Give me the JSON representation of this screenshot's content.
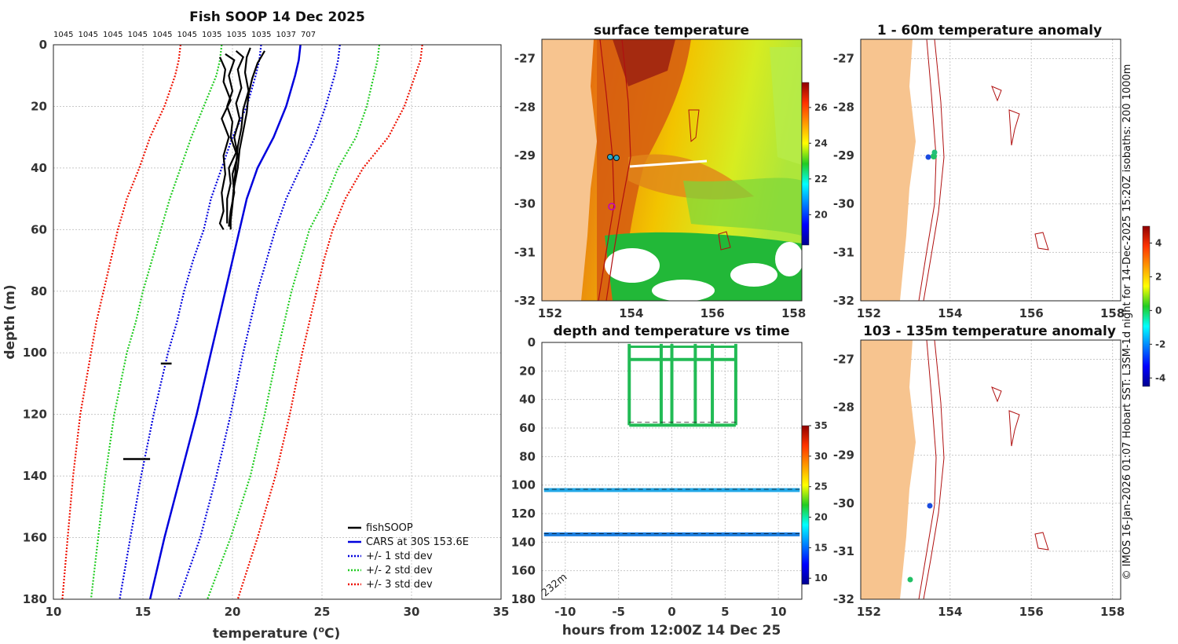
{
  "chart_data": [
    {
      "type": "line",
      "panel": "profile",
      "title": "Fish SOOP 14 Dec 2025",
      "top_labels": [
        "1045",
        "1045",
        "1045",
        "1045",
        "1045",
        "1045",
        "1035",
        "1035",
        "1035",
        "1037",
        "707"
      ],
      "xlabel": "temperature (°C)",
      "xlabel_main": "temperature (",
      "xlabel_sup": "o",
      "xlabel_end": "C)",
      "ylabel": "depth (m)",
      "xlim": [
        10,
        35
      ],
      "ylim": [
        180,
        0
      ],
      "xticks": [
        "10",
        "15",
        "20",
        "25",
        "30",
        "35"
      ],
      "yticks": [
        "0",
        "20",
        "40",
        "60",
        "80",
        "100",
        "120",
        "140",
        "160",
        "180"
      ],
      "legend": [
        "fishSOOP",
        "CARS at 30S 153.6E",
        "+/- 1 std dev",
        "+/- 2 std dev",
        "+/- 3 std dev"
      ],
      "depth": [
        0,
        5,
        10,
        20,
        30,
        40,
        50,
        60,
        70,
        80,
        90,
        100,
        120,
        140,
        160,
        180
      ],
      "series": [
        {
          "name": "CARS at 30S 153.6E",
          "color": "#0000dd",
          "style": "solid",
          "values": [
            23.8,
            23.7,
            23.5,
            23.0,
            22.3,
            21.4,
            20.8,
            20.4,
            20.0,
            19.6,
            19.2,
            18.8,
            18.0,
            17.1,
            16.2,
            15.4
          ]
        },
        {
          "name": "-1 std dev",
          "color": "#0000dd",
          "style": "dotted",
          "values": [
            21.6,
            21.5,
            21.3,
            20.8,
            20.0,
            19.4,
            18.8,
            18.4,
            17.8,
            17.3,
            16.9,
            16.4,
            15.6,
            14.9,
            14.3,
            13.7
          ]
        },
        {
          "name": "+1 std dev",
          "color": "#0000dd",
          "style": "dotted",
          "values": [
            26.0,
            25.9,
            25.7,
            25.2,
            24.6,
            23.8,
            23.0,
            22.4,
            21.9,
            21.4,
            21.0,
            20.6,
            19.9,
            19.1,
            18.2,
            17.0
          ]
        },
        {
          "name": "-2 std dev",
          "color": "#22cc22",
          "style": "dotted",
          "values": [
            19.4,
            19.3,
            19.1,
            18.4,
            17.7,
            17.1,
            16.5,
            16.0,
            15.5,
            15.0,
            14.6,
            14.1,
            13.4,
            12.9,
            12.5,
            12.1
          ]
        },
        {
          "name": "+2 std dev",
          "color": "#22cc22",
          "style": "dotted",
          "values": [
            28.2,
            28.1,
            27.9,
            27.5,
            26.9,
            25.9,
            25.2,
            24.3,
            23.8,
            23.3,
            22.9,
            22.5,
            21.8,
            21.0,
            19.9,
            18.6
          ]
        },
        {
          "name": "-3 std dev",
          "color": "#ee1100",
          "style": "dotted",
          "values": [
            17.1,
            17.0,
            16.8,
            16.2,
            15.4,
            14.8,
            14.1,
            13.6,
            13.2,
            12.8,
            12.4,
            12.1,
            11.5,
            11.1,
            10.8,
            10.5
          ]
        },
        {
          "name": "+3 std dev",
          "color": "#ee1100",
          "style": "dotted",
          "values": [
            30.6,
            30.5,
            30.2,
            29.6,
            28.7,
            27.3,
            26.3,
            25.6,
            25.1,
            24.7,
            24.3,
            23.9,
            23.2,
            22.4,
            21.4,
            20.3
          ]
        }
      ],
      "fishsoop": [
        {
          "t": [
            19.6,
            20.1,
            19.8,
            20.0,
            19.7,
            20.0,
            19.9,
            20.2,
            19.8,
            19.9,
            19.7,
            19.7
          ],
          "d": [
            3,
            5,
            10,
            15,
            20,
            25,
            30,
            35,
            40,
            45,
            50,
            58
          ]
        },
        {
          "t": [
            20.2,
            20.6,
            20.3,
            20.5,
            20.2,
            20.4,
            20.1,
            20.3,
            20.0,
            20.1,
            19.9,
            19.8
          ],
          "d": [
            2,
            4,
            8,
            14,
            19,
            24,
            30,
            36,
            42,
            48,
            54,
            59
          ]
        },
        {
          "t": [
            21.0,
            20.8,
            20.7,
            20.9,
            20.6,
            20.5,
            20.3,
            20.2,
            20.1,
            20.0,
            19.9,
            19.9
          ],
          "d": [
            1,
            4,
            9,
            15,
            21,
            27,
            33,
            39,
            45,
            51,
            56,
            60
          ]
        },
        {
          "t": [
            21.8,
            21.4,
            21.1,
            20.9,
            20.8,
            20.6,
            20.4,
            20.3,
            20.1,
            20.0,
            19.9,
            19.8
          ],
          "d": [
            2,
            6,
            11,
            16,
            22,
            28,
            34,
            40,
            46,
            52,
            57,
            59
          ]
        },
        {
          "t": [
            19.3,
            19.6,
            19.5,
            19.9,
            19.4,
            19.8,
            19.5,
            19.6,
            19.4,
            19.5,
            19.3,
            19.5
          ],
          "d": [
            4,
            8,
            12,
            18,
            24,
            30,
            36,
            42,
            48,
            54,
            58,
            60
          ]
        }
      ],
      "fishsoop_segments": [
        {
          "t": [
            16.0,
            16.6
          ],
          "d": [
            103.5,
            103.5
          ]
        },
        {
          "t": [
            13.9,
            15.4
          ],
          "d": [
            134.5,
            134.5
          ]
        }
      ]
    },
    {
      "type": "heatmap",
      "panel": "surface",
      "title": "surface temperature",
      "xticks": [
        "152",
        "154",
        "156",
        "158"
      ],
      "yticks": [
        "-27",
        "-28",
        "-29",
        "-30",
        "-31",
        "-32"
      ],
      "xlim": [
        151.8,
        158.2
      ],
      "ylim": [
        -32,
        -26.6
      ],
      "colorbar_ticks": [
        "20",
        "22",
        "24",
        "26"
      ],
      "colorbar_range": [
        18.3,
        27.4
      ]
    },
    {
      "type": "scatter",
      "panel": "time",
      "title": "depth and temperature vs time",
      "xlabel": "hours from 12:00Z 14 Dec 25",
      "xticks": [
        "-10",
        "-5",
        "0",
        "5",
        "10"
      ],
      "yticks": [
        "0",
        "20",
        "40",
        "60",
        "80",
        "100",
        "120",
        "140",
        "160",
        "180"
      ],
      "xlim": [
        -12.2,
        12.2
      ],
      "ylim": [
        180,
        0
      ],
      "annotation": "232m",
      "colorbar_ticks": [
        "10",
        "15",
        "20",
        "25",
        "30",
        "35"
      ],
      "colorbar_range": [
        9,
        35
      ],
      "tracks": [
        {
          "depth": 103.5,
          "color": "#22a8e8",
          "t_range": [
            -12,
            12
          ]
        },
        {
          "depth": 134.5,
          "color": "#1a7ee0",
          "t_range": [
            -12,
            12
          ]
        }
      ],
      "profiling_window": [
        -4,
        6
      ],
      "surface_temp_color": "#22bb55"
    },
    {
      "type": "scatter",
      "panel": "anomaly_shallow",
      "title": "1 - 60m temperature anomaly",
      "xticks": [
        "152",
        "154",
        "156",
        "158"
      ],
      "yticks": [
        "-27",
        "-28",
        "-29",
        "-30",
        "-31",
        "-32"
      ],
      "xlim": [
        151.8,
        158.2
      ],
      "ylim": [
        -32,
        -26.6
      ]
    },
    {
      "type": "scatter",
      "panel": "anomaly_deep",
      "title": "103 - 135m temperature anomaly",
      "xticks": [
        "152",
        "154",
        "156",
        "158"
      ],
      "yticks": [
        "-27",
        "-28",
        "-29",
        "-30",
        "-31",
        "-32"
      ],
      "xlim": [
        151.8,
        158.2
      ],
      "ylim": [
        -32,
        -26.6
      ],
      "colorbar_ticks": [
        "-4",
        "-2",
        "0",
        "2",
        "4"
      ],
      "colorbar_range": [
        -4.5,
        5
      ]
    }
  ],
  "side_note": "© IMOS 16-Jan-2026 01:07 Hobart SST: L3SM-1d night for 14-Dec-2025 15:20Z isobaths: 200  1000m",
  "colors": {
    "land": "#f7c48f",
    "isobath": "#b01010"
  }
}
